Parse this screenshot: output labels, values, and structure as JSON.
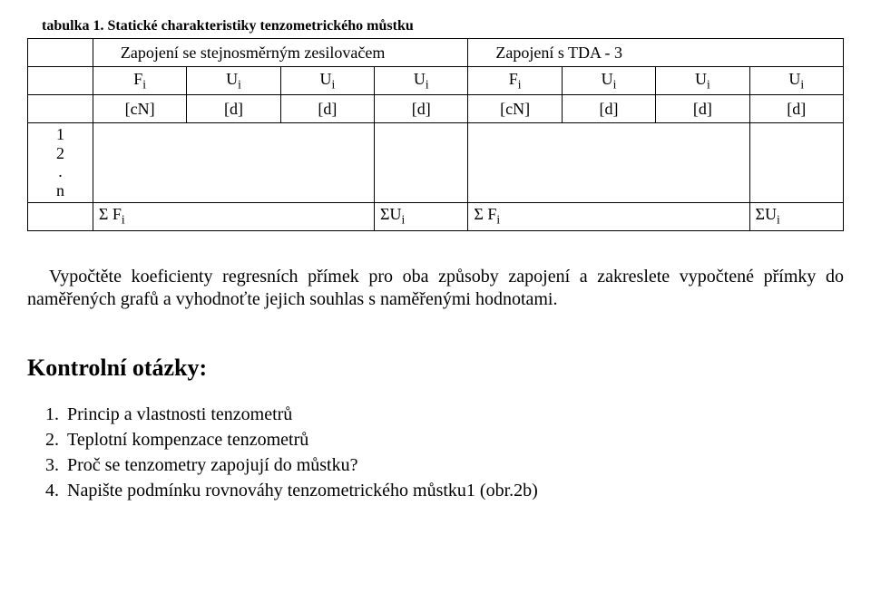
{
  "caption": "tabulka 1. Statické charakteristiky tenzometrického můstku",
  "table": {
    "header_left": "Zapojení se stejnosměrným zesilovačem",
    "header_right": "Zapojení s TDA - 3",
    "symbol_row": {
      "col0": "",
      "cells": [
        "F_i",
        "U_i",
        "U_i",
        "U_i",
        "F_i",
        "U_i",
        "U_i",
        "U_i"
      ]
    },
    "unit_row": {
      "col0": "",
      "cells": [
        "[cN]",
        "[d]",
        "[d]",
        "[d]",
        "[cN]",
        "[d]",
        "[d]",
        "[d]"
      ]
    },
    "data_row_labels": [
      "1",
      "2",
      ".",
      "n"
    ],
    "sum_row": {
      "col0": "",
      "sumF": "Σ F_i",
      "sumU": "ΣU_i"
    }
  },
  "paragraph": "Vypočtěte koeficienty regresních přímek pro oba způsoby zapojení a zakreslete vypočtené přímky do naměřených grafů a vyhodnoťte jejich souhlas s naměřenými hodnotami.",
  "section_heading": "Kontrolní otázky:",
  "questions": [
    "Princip a vlastnosti tenzometrů",
    "Teplotní kompenzace tenzometrů",
    "Proč se tenzometry zapojují do můstku?",
    "Napište podmínku rovnováhy tenzometrického můstku1 (obr.2b)"
  ]
}
